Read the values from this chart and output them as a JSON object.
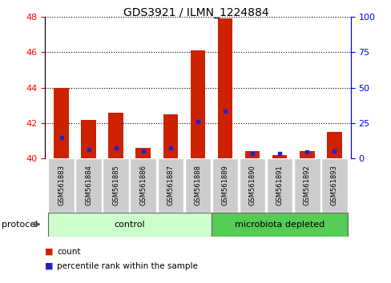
{
  "title": "GDS3921 / ILMN_1224884",
  "samples": [
    "GSM561883",
    "GSM561884",
    "GSM561885",
    "GSM561886",
    "GSM561887",
    "GSM561888",
    "GSM561889",
    "GSM561890",
    "GSM561891",
    "GSM561892",
    "GSM561893"
  ],
  "red_values": [
    44.0,
    42.2,
    42.6,
    40.6,
    42.5,
    46.1,
    47.9,
    40.4,
    40.2,
    40.4,
    41.5
  ],
  "blue_values": [
    41.2,
    40.5,
    40.6,
    40.4,
    40.6,
    42.1,
    42.7,
    40.3,
    40.3,
    40.35,
    40.4
  ],
  "ylim_left": [
    40,
    48
  ],
  "ylim_right": [
    0,
    100
  ],
  "yticks_left": [
    40,
    42,
    44,
    46,
    48
  ],
  "yticks_right": [
    0,
    25,
    50,
    75,
    100
  ],
  "n_control": 6,
  "n_microbiota": 5,
  "control_label": "control",
  "microbiota_label": "microbiota depleted",
  "protocol_label": "protocol",
  "legend_count": "count",
  "legend_pct": "percentile rank within the sample",
  "bar_color": "#cc2200",
  "dot_color": "#2222cc",
  "control_bg": "#ccffcc",
  "microbiota_bg": "#55cc55",
  "tick_bg": "#cccccc",
  "bar_width": 0.55,
  "base_value": 40.0
}
